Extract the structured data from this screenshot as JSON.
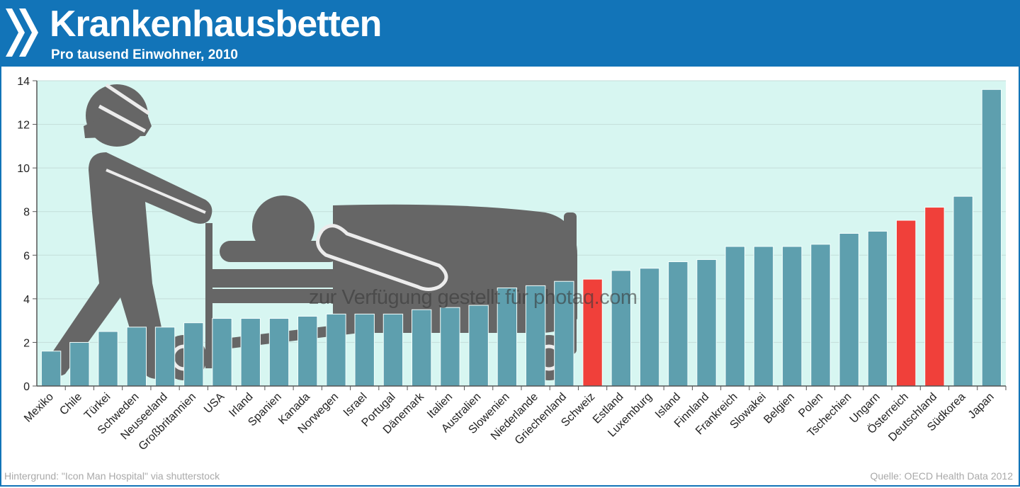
{
  "header": {
    "logo_icon": "oecd-chevrons-icon",
    "title": "Krankenhausbetten",
    "subtitle": "Pro tausend Einwohner, 2010"
  },
  "chart_data": {
    "type": "bar",
    "title": "Krankenhausbetten",
    "subtitle": "Pro tausend Einwohner, 2010",
    "xlabel": "",
    "ylabel": "",
    "ylim": [
      0,
      14
    ],
    "yticks": [
      0,
      2,
      4,
      6,
      8,
      10,
      12,
      14
    ],
    "grid": true,
    "categories": [
      "Mexiko",
      "Chile",
      "Türkei",
      "Schweden",
      "Neuseeland",
      "Großbritannien",
      "USA",
      "Irland",
      "Spanien",
      "Kanada",
      "Norwegen",
      "Israel",
      "Portugal",
      "Dänemark",
      "Italien",
      "Australien",
      "Slowenien",
      "Niederlande",
      "Griechenland",
      "Schweiz",
      "Estland",
      "Luxemburg",
      "Island",
      "Finnland",
      "Frankreich",
      "Slowakei",
      "Belgien",
      "Polen",
      "Tschechien",
      "Ungarn",
      "Österreich",
      "Deutschland",
      "Südkorea",
      "Japan"
    ],
    "values": [
      1.6,
      2.0,
      2.5,
      2.7,
      2.7,
      2.9,
      3.1,
      3.1,
      3.1,
      3.2,
      3.3,
      3.3,
      3.3,
      3.5,
      3.6,
      3.7,
      4.5,
      4.6,
      4.8,
      4.9,
      5.3,
      5.4,
      5.7,
      5.8,
      6.4,
      6.4,
      6.4,
      6.5,
      7.0,
      7.1,
      7.6,
      8.2,
      8.7,
      13.6
    ],
    "highlighted": [
      "Schweiz",
      "Österreich",
      "Deutschland"
    ],
    "colors": {
      "bar": "#5e9fae",
      "highlight": "#f0403a",
      "plot_background": "#d7f6f1",
      "header": "#1274b8"
    },
    "background_image": "hospital-bed-pictogram-icon"
  },
  "footer": {
    "credit": "Hintergrund: \"Icon Man Hospital\" via shutterstock",
    "source": "Quelle: OECD Health Data 2012",
    "watermark": "zur Verfügung gestellt für photaq.com"
  }
}
